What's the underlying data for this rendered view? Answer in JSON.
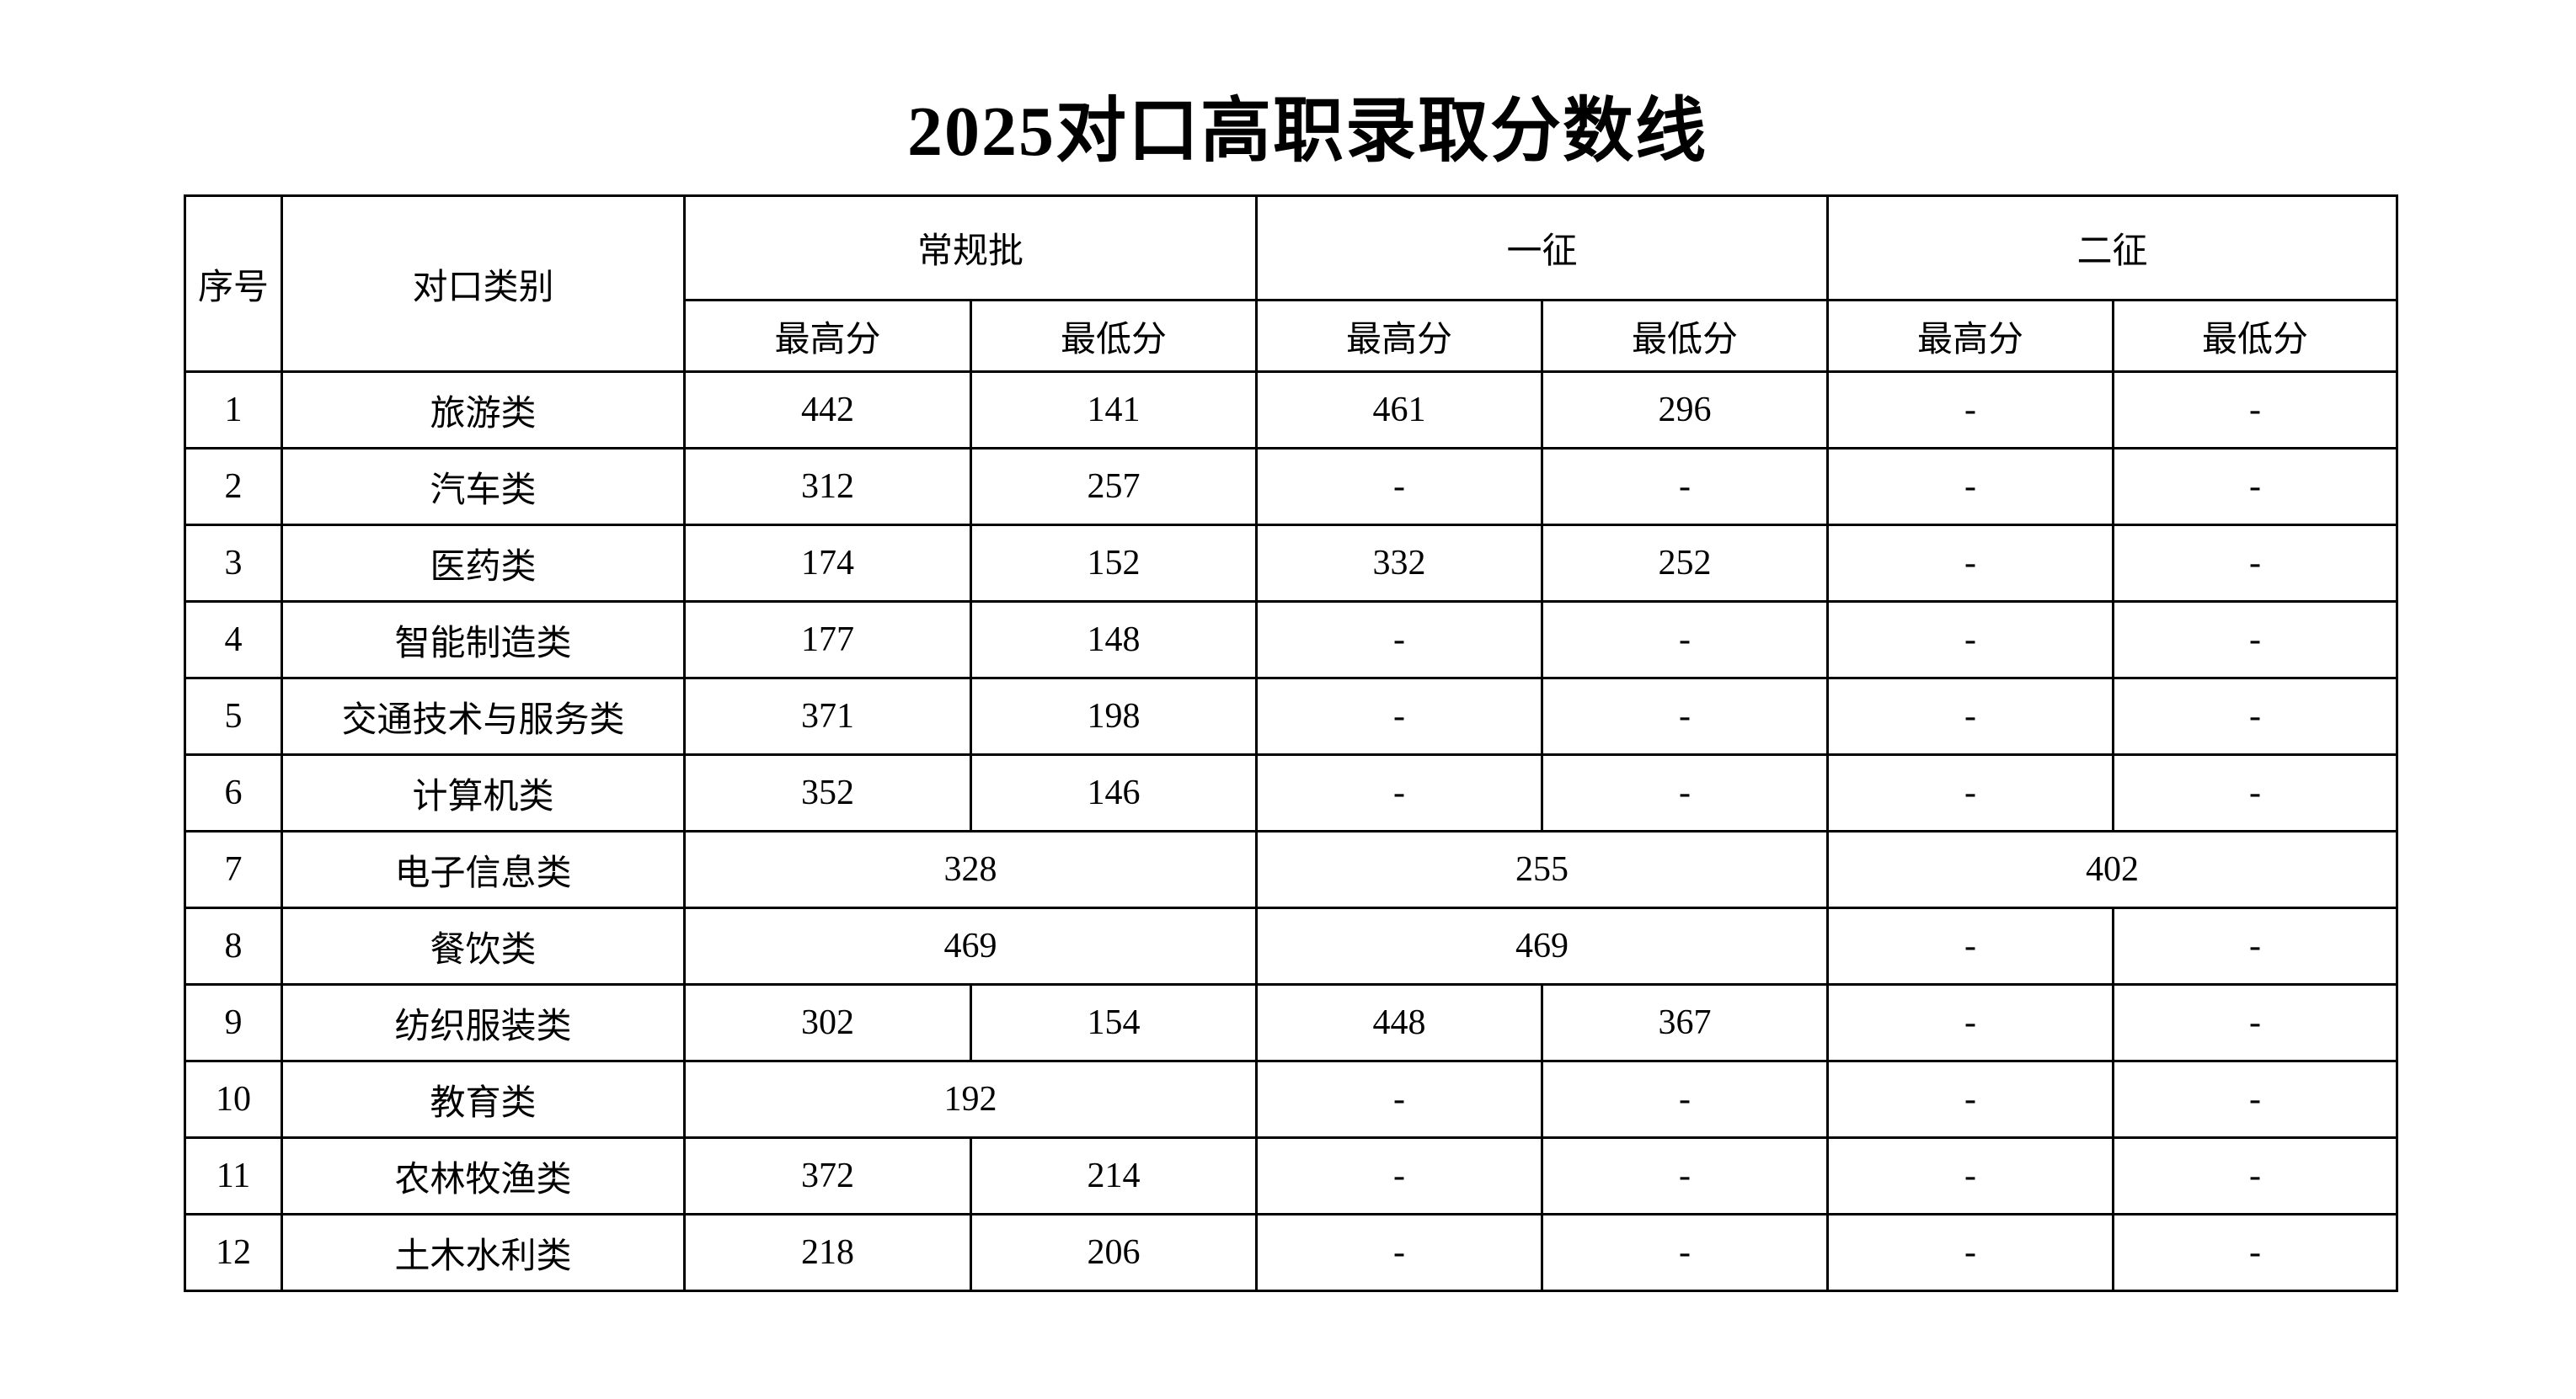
{
  "title": "2025对口高职录取分数线",
  "header": {
    "index": "序号",
    "category": "对口类别",
    "groups": [
      "常规批",
      "一征",
      "二征"
    ],
    "sub": [
      "最高分",
      "最低分",
      "最高分",
      "最低分",
      "最高分",
      "最低分"
    ]
  },
  "rows": [
    {
      "index": "1",
      "category": "旅游类",
      "cells": [
        {
          "v": "442"
        },
        {
          "v": "141"
        },
        {
          "v": "461"
        },
        {
          "v": "296"
        },
        {
          "v": "-"
        },
        {
          "v": "-"
        }
      ]
    },
    {
      "index": "2",
      "category": "汽车类",
      "cells": [
        {
          "v": "312"
        },
        {
          "v": "257"
        },
        {
          "v": "-"
        },
        {
          "v": "-"
        },
        {
          "v": "-"
        },
        {
          "v": "-"
        }
      ]
    },
    {
      "index": "3",
      "category": "医药类",
      "cells": [
        {
          "v": "174"
        },
        {
          "v": "152"
        },
        {
          "v": "332"
        },
        {
          "v": "252"
        },
        {
          "v": "-"
        },
        {
          "v": "-"
        }
      ]
    },
    {
      "index": "4",
      "category": "智能制造类",
      "cells": [
        {
          "v": "177"
        },
        {
          "v": "148"
        },
        {
          "v": "-"
        },
        {
          "v": "-"
        },
        {
          "v": "-"
        },
        {
          "v": "-"
        }
      ]
    },
    {
      "index": "5",
      "category": "交通技术与服务类",
      "cells": [
        {
          "v": "371"
        },
        {
          "v": "198"
        },
        {
          "v": "-"
        },
        {
          "v": "-"
        },
        {
          "v": "-"
        },
        {
          "v": "-"
        }
      ]
    },
    {
      "index": "6",
      "category": "计算机类",
      "cells": [
        {
          "v": "352"
        },
        {
          "v": "146"
        },
        {
          "v": "-"
        },
        {
          "v": "-"
        },
        {
          "v": "-"
        },
        {
          "v": "-"
        }
      ]
    },
    {
      "index": "7",
      "category": "电子信息类",
      "cells": [
        {
          "v": "328",
          "span": 2
        },
        {
          "v": "255",
          "span": 2
        },
        {
          "v": "402",
          "span": 2
        }
      ]
    },
    {
      "index": "8",
      "category": "餐饮类",
      "cells": [
        {
          "v": "469",
          "span": 2
        },
        {
          "v": "469",
          "span": 2
        },
        {
          "v": "-"
        },
        {
          "v": "-"
        }
      ]
    },
    {
      "index": "9",
      "category": "纺织服装类",
      "cells": [
        {
          "v": "302"
        },
        {
          "v": "154"
        },
        {
          "v": "448"
        },
        {
          "v": "367"
        },
        {
          "v": "-"
        },
        {
          "v": "-"
        }
      ]
    },
    {
      "index": "10",
      "category": "教育类",
      "cells": [
        {
          "v": "192",
          "span": 2
        },
        {
          "v": "-"
        },
        {
          "v": "-"
        },
        {
          "v": "-"
        },
        {
          "v": "-"
        }
      ]
    },
    {
      "index": "11",
      "category": "农林牧渔类",
      "cells": [
        {
          "v": "372"
        },
        {
          "v": "214"
        },
        {
          "v": "-"
        },
        {
          "v": "-"
        },
        {
          "v": "-"
        },
        {
          "v": "-"
        }
      ]
    },
    {
      "index": "12",
      "category": "土木水利类",
      "cells": [
        {
          "v": "218"
        },
        {
          "v": "206"
        },
        {
          "v": "-"
        },
        {
          "v": "-"
        },
        {
          "v": "-"
        },
        {
          "v": "-"
        }
      ]
    }
  ]
}
